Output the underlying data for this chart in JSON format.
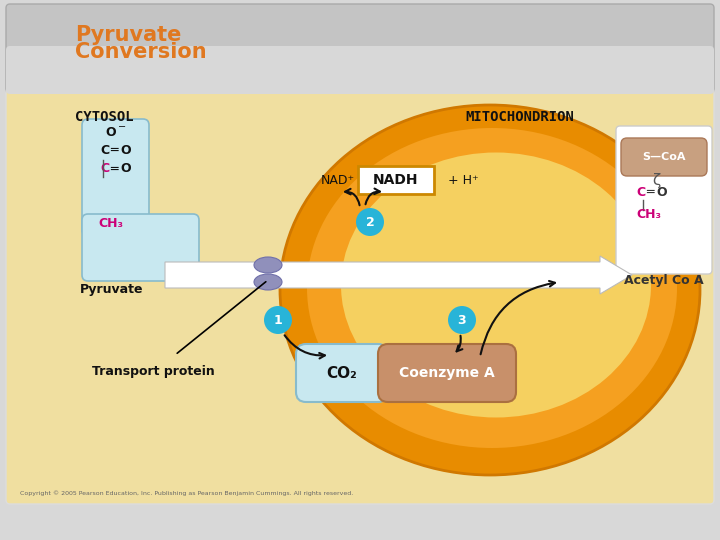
{
  "title_line1": "Pyruvate",
  "title_line2": "Conversion",
  "title_color": "#E07820",
  "bg_outer": "#D8D8D8",
  "bg_header": "#C0C0C0",
  "bg_main": "#F5E090",
  "bg_mito_outer": "#E88C00",
  "bg_mito_mid": "#F5A020",
  "bg_mito_inner": "#F5D060",
  "cytosol_label": "CYTOSOL",
  "mito_label": "MITOCHONDRION",
  "pyruvate_label": "Pyruvate",
  "transport_label": "Transport protein",
  "acetylcoa_label": "Acetyl Co A",
  "nad_label": "NAD⁺",
  "nadh_label": "NADH",
  "h_label": "+ H⁺",
  "co2_label": "CO₂",
  "coenzyme_label": "Coenzyme A",
  "circle1_label": "1",
  "circle2_label": "2",
  "circle3_label": "3",
  "light_blue": "#C8E8F0",
  "cyan_circle": "#28B4D8",
  "brown_box": "#C8906A",
  "purple_knob": "#9090BB",
  "arrow_color": "#111111",
  "nadh_box_color": "#CC8800",
  "white_box": "#FFFFFF",
  "magenta_c": "#CC0077",
  "copyright": "Copyright © 2005 Pearson Education, Inc. Publishing as Pearson Benjamin Cummings. All rights reserved."
}
